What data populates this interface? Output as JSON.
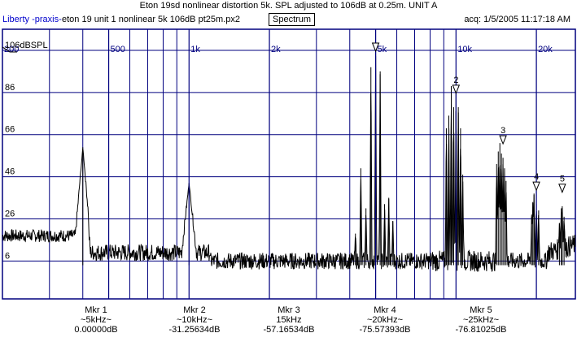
{
  "header": {
    "title": "Eton 19sd nonlinear distortion 5k. SPL adjusted to 106dB at 0.25m. UNIT A",
    "brand": "Liberty -praxis-",
    "file": "eton 19 unit 1 nonlinear 5k 106dB pt25m.px2",
    "view_button": "Spectrum",
    "acq": "acq: 1/5/2005 11:17:18 AM"
  },
  "chart_data": {
    "type": "line",
    "title": "Eton 19sd nonlinear distortion 5k. SPL adjusted to 106dB at 0.25m. UNIT A",
    "x_scale": "log",
    "xlim": [
      200,
      28000
    ],
    "ylim": [
      -12,
      116
    ],
    "x_ticks": [
      {
        "value": 200,
        "label": "200"
      },
      {
        "value": 500,
        "label": "500"
      },
      {
        "value": 1000,
        "label": "1k"
      },
      {
        "value": 2000,
        "label": "2k"
      },
      {
        "value": 5000,
        "label": "5k"
      },
      {
        "value": 10000,
        "label": "10k"
      },
      {
        "value": 20000,
        "label": "20k"
      }
    ],
    "y_ticks": [
      {
        "value": 106,
        "label": "106dBSPL"
      },
      {
        "value": 86,
        "label": "86"
      },
      {
        "value": 66,
        "label": "66"
      },
      {
        "value": 46,
        "label": "46"
      },
      {
        "value": 26,
        "label": "26"
      },
      {
        "value": 6,
        "label": "6"
      }
    ],
    "grid": true,
    "background": "#ffffff",
    "grid_color": "#00007f",
    "trace_color": "#000000",
    "peaks": [
      {
        "f": 400,
        "db": 60
      },
      {
        "f": 1000,
        "db": 43
      },
      {
        "f": 4200,
        "db": 19
      },
      {
        "f": 4400,
        "db": 50
      },
      {
        "f": 4600,
        "db": 31
      },
      {
        "f": 4800,
        "db": 98
      },
      {
        "f": 5000,
        "db": 106
      },
      {
        "f": 5200,
        "db": 96
      },
      {
        "f": 5400,
        "db": 33
      },
      {
        "f": 5600,
        "db": 36
      },
      {
        "f": 5800,
        "db": 25
      },
      {
        "f": 9200,
        "db": 69
      },
      {
        "f": 9400,
        "db": 75
      },
      {
        "f": 9600,
        "db": 89
      },
      {
        "f": 9800,
        "db": 79
      },
      {
        "f": 10000,
        "db": 87
      },
      {
        "f": 10200,
        "db": 79
      },
      {
        "f": 10400,
        "db": 69
      },
      {
        "f": 10600,
        "db": 47
      },
      {
        "f": 14200,
        "db": 52
      },
      {
        "f": 14400,
        "db": 58
      },
      {
        "f": 14600,
        "db": 62
      },
      {
        "f": 14800,
        "db": 57
      },
      {
        "f": 15000,
        "db": 55
      },
      {
        "f": 15200,
        "db": 50
      },
      {
        "f": 15400,
        "db": 44
      },
      {
        "f": 19200,
        "db": 28
      },
      {
        "f": 19400,
        "db": 34
      },
      {
        "f": 19600,
        "db": 38
      },
      {
        "f": 20000,
        "db": 33
      },
      {
        "f": 20400,
        "db": 30
      },
      {
        "f": 24400,
        "db": 24
      },
      {
        "f": 24800,
        "db": 31
      },
      {
        "f": 25000,
        "db": 32
      },
      {
        "f": 25400,
        "db": 27
      }
    ],
    "markers": [
      {
        "label": "1",
        "f": 5000,
        "db": 106
      },
      {
        "label": "2",
        "f": 10000,
        "db": 86
      },
      {
        "label": "3",
        "f": 15000,
        "db": 62
      },
      {
        "label": "4",
        "f": 20000,
        "db": 40
      },
      {
        "label": "5",
        "f": 25000,
        "db": 39
      }
    ]
  },
  "marker_readouts": [
    {
      "name": "Mkr 1",
      "freq": "~5kHz~",
      "value": "0.00000dB"
    },
    {
      "name": "Mkr 2",
      "freq": "~10kHz~",
      "value": "-31.25634dB"
    },
    {
      "name": "Mkr 3",
      "freq": "15kHz",
      "value": "-57.16534dB"
    },
    {
      "name": "Mkr 4",
      "freq": "~20kHz~",
      "value": "-75.57393dB"
    },
    {
      "name": "Mkr 5",
      "freq": "~25kHz~",
      "value": "-76.81025dB"
    }
  ]
}
